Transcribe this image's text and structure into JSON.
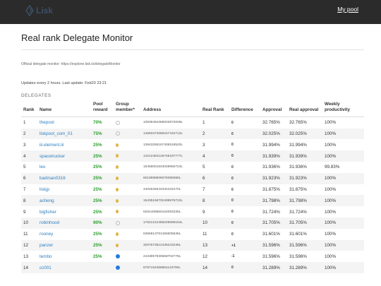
{
  "header": {
    "logo_text": "Lisk",
    "my_pool_link": "My pool"
  },
  "page": {
    "title": "Real rank Delegate Monitor",
    "official_text": "Official delegate monitor: https://explorer.lisk.io/delegateMonitor",
    "update_text": "Updates every 2 hours. Last update: Feb20 23:21",
    "section_label": "DELEGATES"
  },
  "table": {
    "columns": [
      "Rank",
      "Name",
      "Pool reward",
      "Group member*",
      "Address",
      "Real Rank",
      "Difference",
      "Approval",
      "Real approval",
      "Weekly productivity"
    ],
    "rows": [
      {
        "rank": "1",
        "name": "thepool",
        "reward": "70%",
        "member": "none",
        "address": "10839494368003872009L",
        "real_rank": "1",
        "diff": "0",
        "approval": "32.765%",
        "real_approval": "32.765%",
        "productivity": "100%"
      },
      {
        "rank": "2",
        "name": "liskpool_com_01",
        "reward": "75%",
        "member": "none",
        "address": "14593474056247442712L",
        "real_rank": "2",
        "diff": "0",
        "approval": "32.025%",
        "real_approval": "32.025%",
        "productivity": "100%"
      },
      {
        "rank": "3",
        "name": "iii.element.iii",
        "reward": "25%",
        "member": "pin",
        "address": "13943256167405518520L",
        "real_rank": "3",
        "diff": "0",
        "approval": "31.994%",
        "real_approval": "31.994%",
        "productivity": "100%"
      },
      {
        "rank": "4",
        "name": "spacetrucker",
        "reward": "25%",
        "member": "pin",
        "address": "14212484126746187777L",
        "real_rank": "4",
        "diff": "0",
        "approval": "31.939%",
        "real_approval": "31.939%",
        "productivity": "100%"
      },
      {
        "rank": "5",
        "name": "leo",
        "reward": "25%",
        "member": "pin",
        "address": "15458001843048965724L",
        "real_rank": "5",
        "diff": "0",
        "approval": "31.936%",
        "real_approval": "31.936%",
        "productivity": "99.83%"
      },
      {
        "rank": "6",
        "name": "badman0316",
        "reward": "25%",
        "member": "pin",
        "address": "6019598606079398388L",
        "real_rank": "6",
        "diff": "0",
        "approval": "31.923%",
        "real_approval": "31.923%",
        "productivity": "100%"
      },
      {
        "rank": "7",
        "name": "liskjp",
        "reward": "25%",
        "member": "pin",
        "address": "4402625644334434270L",
        "real_rank": "7",
        "diff": "0",
        "approval": "31.875%",
        "real_approval": "31.875%",
        "productivity": "100%"
      },
      {
        "rank": "8",
        "name": "acheng",
        "reward": "25%",
        "member": "pin",
        "address": "15435156702499576722L",
        "real_rank": "8",
        "diff": "0",
        "approval": "31.798%",
        "real_approval": "31.798%",
        "productivity": "100%"
      },
      {
        "rank": "9",
        "name": "bigfisher",
        "reward": "25%",
        "member": "pin",
        "address": "6281408850162093335L",
        "real_rank": "9",
        "diff": "0",
        "approval": "31.724%",
        "real_approval": "31.724%",
        "productivity": "100%"
      },
      {
        "rank": "10",
        "name": "robinhood",
        "reward": "90%",
        "member": "none",
        "address": "17621212458226596154L",
        "real_rank": "10",
        "diff": "0",
        "approval": "31.705%",
        "real_approval": "31.705%",
        "productivity": "100%"
      },
      {
        "rank": "11",
        "name": "rooney",
        "reward": "25%",
        "member": "pin",
        "address": "6356913781456505636L",
        "real_rank": "11",
        "diff": "0",
        "approval": "31.601%",
        "real_approval": "31.601%",
        "productivity": "100%"
      },
      {
        "rank": "12",
        "name": "panzer",
        "reward": "25%",
        "member": "pin",
        "address": "3207673512436243236L",
        "real_rank": "13",
        "diff": "+1",
        "approval": "31.596%",
        "real_approval": "31.596%",
        "productivity": "100%"
      },
      {
        "rank": "13",
        "name": "tembo",
        "reward": "25%",
        "member": "yes",
        "address": "2433857930558702776L",
        "real_rank": "12",
        "diff": "-1",
        "approval": "31.596%",
        "real_approval": "31.596%",
        "productivity": "100%"
      },
      {
        "rank": "14",
        "name": "cc001",
        "reward": "",
        "member": "yes",
        "address": "6787154358851143790L",
        "real_rank": "14",
        "diff": "0",
        "approval": "31.289%",
        "real_approval": "31.289%",
        "productivity": "100%"
      }
    ]
  }
}
